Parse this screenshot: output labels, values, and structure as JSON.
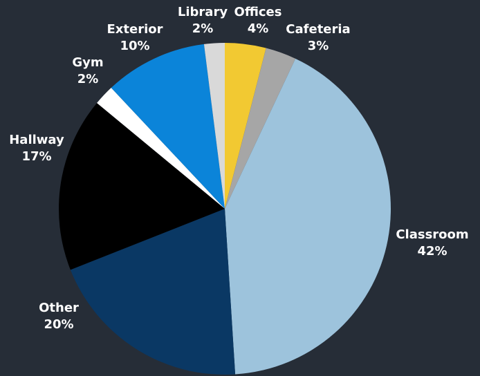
{
  "chart_data": {
    "type": "pie",
    "categories": [
      "Offices",
      "Cafeteria",
      "Classroom",
      "Other",
      "Hallway",
      "Gym",
      "Exterior",
      "Library"
    ],
    "values": [
      4,
      3,
      42,
      20,
      17,
      2,
      10,
      2
    ],
    "value_labels": [
      "4%",
      "3%",
      "42%",
      "20%",
      "17%",
      "2%",
      "10%",
      "2%"
    ],
    "colors": [
      "#f2c932",
      "#a6a6a6",
      "#9dc3dc",
      "#0a3864",
      "#000000",
      "#ffffff",
      "#0b84d9",
      "#d9d9d9"
    ]
  }
}
